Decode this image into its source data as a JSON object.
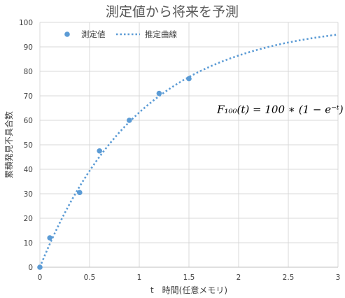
{
  "chart_data": {
    "type": "scatter",
    "title": "測定値から将来を予測",
    "xlabel": "t　時間(任意メモリ)",
    "ylabel": "累積発見不具合数",
    "xlim": [
      0,
      3
    ],
    "ylim": [
      0,
      100
    ],
    "x_ticks": [
      "0",
      "0.5",
      "1",
      "1.5",
      "2",
      "2.5",
      "3"
    ],
    "y_ticks": [
      "0",
      "10",
      "20",
      "30",
      "40",
      "50",
      "60",
      "70",
      "80",
      "90",
      "100"
    ],
    "grid": true,
    "legend_position": "top-left",
    "series": [
      {
        "name": "測定値",
        "style": "markers",
        "color": "#5b9bd5",
        "x": [
          0,
          0.1,
          0.4,
          0.6,
          0.9,
          1.2,
          1.5
        ],
        "y": [
          0,
          12,
          30.5,
          47.5,
          60,
          71,
          77
        ]
      },
      {
        "name": "推定曲線",
        "style": "dotted-line",
        "color": "#5b9bd5",
        "function": "100*(1-exp(-t))",
        "x_range": [
          0,
          3
        ]
      }
    ],
    "annotation": {
      "text": "F₁₀₀(t) = 100 ∗ (1 −  e⁻ᵗ)",
      "x": 2.05,
      "y": 63
    }
  }
}
